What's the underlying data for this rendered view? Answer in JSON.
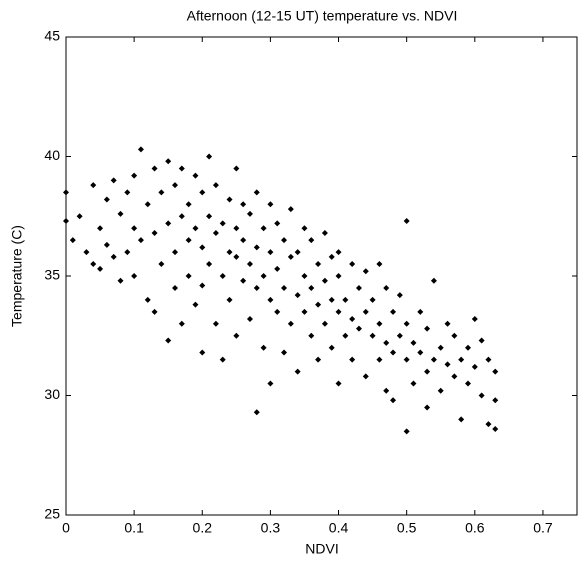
{
  "chart_data": {
    "type": "scatter",
    "title": "Afternoon (12-15 UT) temperature vs. NDVI",
    "x_label": "NDVI",
    "y_label": "Temperature (C)",
    "marker_color": "#000000",
    "xlim": [
      0,
      0.75
    ],
    "xticks": [
      0,
      0.1,
      0.2,
      0.3,
      0.4,
      0.5,
      0.6,
      0.7
    ],
    "ylim": [
      25,
      45
    ],
    "yticks": [
      25,
      30,
      35,
      40,
      45
    ],
    "x": [
      0.0,
      0.0,
      0.01,
      0.02,
      0.03,
      0.04,
      0.04,
      0.05,
      0.05,
      0.06,
      0.06,
      0.07,
      0.07,
      0.08,
      0.08,
      0.09,
      0.09,
      0.1,
      0.1,
      0.1,
      0.11,
      0.11,
      0.12,
      0.12,
      0.13,
      0.13,
      0.13,
      0.14,
      0.14,
      0.15,
      0.15,
      0.15,
      0.16,
      0.16,
      0.16,
      0.17,
      0.17,
      0.17,
      0.18,
      0.18,
      0.18,
      0.19,
      0.19,
      0.19,
      0.2,
      0.2,
      0.2,
      0.2,
      0.21,
      0.21,
      0.21,
      0.22,
      0.22,
      0.22,
      0.23,
      0.23,
      0.23,
      0.24,
      0.24,
      0.24,
      0.25,
      0.25,
      0.25,
      0.25,
      0.26,
      0.26,
      0.26,
      0.27,
      0.27,
      0.27,
      0.28,
      0.28,
      0.28,
      0.28,
      0.29,
      0.29,
      0.29,
      0.3,
      0.3,
      0.3,
      0.3,
      0.31,
      0.31,
      0.31,
      0.32,
      0.32,
      0.32,
      0.33,
      0.33,
      0.33,
      0.34,
      0.34,
      0.34,
      0.35,
      0.35,
      0.35,
      0.36,
      0.36,
      0.36,
      0.37,
      0.37,
      0.37,
      0.38,
      0.38,
      0.38,
      0.39,
      0.39,
      0.39,
      0.4,
      0.4,
      0.4,
      0.4,
      0.41,
      0.41,
      0.42,
      0.42,
      0.42,
      0.43,
      0.43,
      0.44,
      0.44,
      0.44,
      0.45,
      0.45,
      0.46,
      0.46,
      0.46,
      0.47,
      0.47,
      0.47,
      0.48,
      0.48,
      0.48,
      0.49,
      0.49,
      0.5,
      0.5,
      0.5,
      0.5,
      0.51,
      0.51,
      0.52,
      0.52,
      0.53,
      0.53,
      0.53,
      0.54,
      0.54,
      0.55,
      0.55,
      0.56,
      0.56,
      0.57,
      0.57,
      0.58,
      0.58,
      0.59,
      0.59,
      0.6,
      0.6,
      0.61,
      0.61,
      0.62,
      0.62,
      0.63,
      0.63,
      0.63
    ],
    "values": [
      37.3,
      38.5,
      36.5,
      37.5,
      36.0,
      35.5,
      38.8,
      37.0,
      35.3,
      38.2,
      36.3,
      39.0,
      35.8,
      37.6,
      34.8,
      38.5,
      36.0,
      39.2,
      35.0,
      37.0,
      40.3,
      36.5,
      38.0,
      34.0,
      39.5,
      36.8,
      33.5,
      38.5,
      35.5,
      37.2,
      39.8,
      32.3,
      36.0,
      38.8,
      34.5,
      37.5,
      33.0,
      39.5,
      36.5,
      38.0,
      35.0,
      37.0,
      39.2,
      33.8,
      36.2,
      38.5,
      34.6,
      31.8,
      37.5,
      35.5,
      40.0,
      36.8,
      33.0,
      38.8,
      37.2,
      35.0,
      31.5,
      36.0,
      38.2,
      34.0,
      37.0,
      35.8,
      39.5,
      32.5,
      36.5,
      34.8,
      38.0,
      35.5,
      37.6,
      33.2,
      36.2,
      29.3,
      34.5,
      38.5,
      35.0,
      37.0,
      32.0,
      36.0,
      34.0,
      38.0,
      30.5,
      35.3,
      33.5,
      37.2,
      34.5,
      36.5,
      31.8,
      35.8,
      33.0,
      37.8,
      34.2,
      36.0,
      31.0,
      35.0,
      33.5,
      37.0,
      34.5,
      32.5,
      36.5,
      33.8,
      35.5,
      31.5,
      34.8,
      33.0,
      36.8,
      34.0,
      32.0,
      35.8,
      33.5,
      35.0,
      30.5,
      36.0,
      34.0,
      32.5,
      33.2,
      35.5,
      31.5,
      34.5,
      32.8,
      33.5,
      30.8,
      35.2,
      32.5,
      34.0,
      33.0,
      31.5,
      35.5,
      32.2,
      34.5,
      30.2,
      33.5,
      31.8,
      29.8,
      32.5,
      34.2,
      31.5,
      33.0,
      28.5,
      37.3,
      32.2,
      30.5,
      31.8,
      33.5,
      31.0,
      32.8,
      29.5,
      31.5,
      34.8,
      32.0,
      30.2,
      31.3,
      33.0,
      30.8,
      32.5,
      31.5,
      29.0,
      30.5,
      32.0,
      31.2,
      33.2,
      30.0,
      32.3,
      31.5,
      28.8,
      31.0,
      29.8,
      28.6
    ]
  }
}
